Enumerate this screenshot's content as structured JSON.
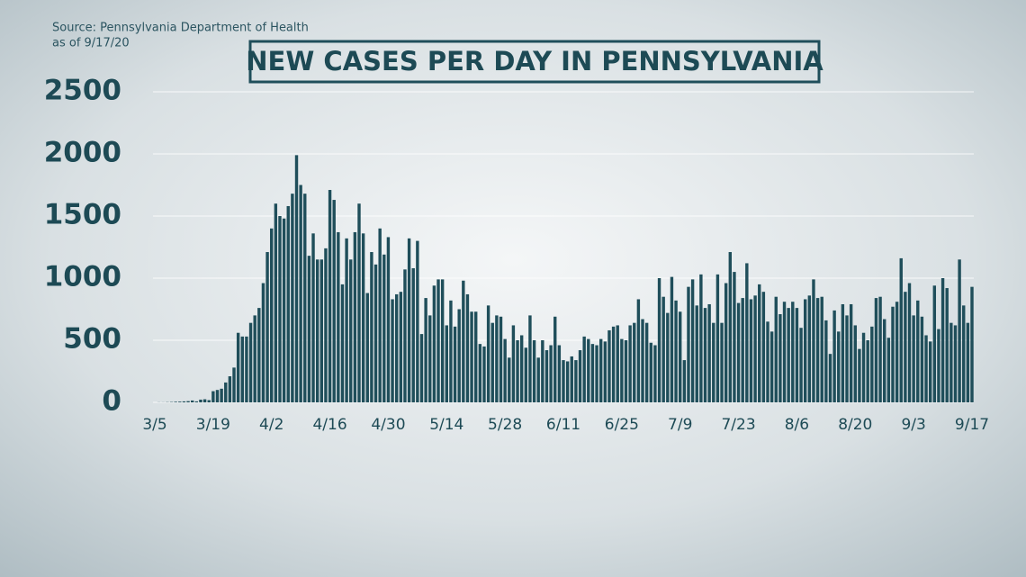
{
  "chart_data": {
    "type": "bar",
    "title": "NEW CASES PER DAY IN PENNSYLVANIA",
    "source": "Source: Pennsylvania Department of Health",
    "note": "as of 9/17/20",
    "color": "#1f4e5a",
    "grid": true,
    "ylim": [
      0,
      2500
    ],
    "yticks": [
      0,
      500,
      1000,
      1500,
      2000,
      2500
    ],
    "categories": [
      "3/5",
      null,
      null,
      null,
      null,
      null,
      null,
      null,
      null,
      null,
      null,
      null,
      null,
      null,
      "3/19",
      null,
      null,
      null,
      null,
      null,
      null,
      null,
      null,
      null,
      null,
      null,
      null,
      null,
      "4/2",
      null,
      null,
      null,
      null,
      null,
      null,
      null,
      null,
      null,
      null,
      null,
      null,
      null,
      "4/16",
      null,
      null,
      null,
      null,
      null,
      null,
      null,
      null,
      null,
      null,
      null,
      null,
      null,
      "4/30",
      null,
      null,
      null,
      null,
      null,
      null,
      null,
      null,
      null,
      null,
      null,
      null,
      null,
      "5/14",
      null,
      null,
      null,
      null,
      null,
      null,
      null,
      null,
      null,
      null,
      null,
      null,
      null,
      "5/28",
      null,
      null,
      null,
      null,
      null,
      null,
      null,
      null,
      null,
      null,
      null,
      null,
      null,
      "6/11",
      null,
      null,
      null,
      null,
      null,
      null,
      null,
      null,
      null,
      null,
      null,
      null,
      null,
      "6/25",
      null,
      null,
      null,
      null,
      null,
      null,
      null,
      null,
      null,
      null,
      null,
      null,
      null,
      "7/9",
      null,
      null,
      null,
      null,
      null,
      null,
      null,
      null,
      null,
      null,
      null,
      null,
      null,
      "7/23",
      null,
      null,
      null,
      null,
      null,
      null,
      null,
      null,
      null,
      null,
      null,
      null,
      null,
      "8/6",
      null,
      null,
      null,
      null,
      null,
      null,
      null,
      null,
      null,
      null,
      null,
      null,
      null,
      "8/20",
      null,
      null,
      null,
      null,
      null,
      null,
      null,
      null,
      null,
      null,
      null,
      null,
      null,
      "9/3",
      null,
      null,
      null,
      null,
      null,
      null,
      null,
      null,
      null,
      null,
      null,
      null,
      null,
      "9/17"
    ],
    "values": [
      0,
      1,
      1,
      2,
      3,
      5,
      6,
      8,
      10,
      15,
      8,
      22,
      25,
      18,
      90,
      100,
      110,
      160,
      210,
      280,
      560,
      530,
      530,
      640,
      700,
      760,
      960,
      1210,
      1400,
      1600,
      1500,
      1480,
      1580,
      1680,
      1990,
      1750,
      1680,
      1180,
      1360,
      1150,
      1150,
      1240,
      1710,
      1630,
      1370,
      950,
      1320,
      1150,
      1370,
      1600,
      1360,
      880,
      1210,
      1110,
      1400,
      1190,
      1330,
      830,
      870,
      890,
      1070,
      1320,
      1080,
      1300,
      550,
      840,
      700,
      940,
      990,
      990,
      620,
      820,
      610,
      750,
      980,
      870,
      730,
      730,
      470,
      450,
      780,
      640,
      700,
      690,
      510,
      360,
      620,
      500,
      540,
      440,
      700,
      500,
      360,
      500,
      420,
      460,
      690,
      460,
      340,
      330,
      370,
      340,
      420,
      530,
      510,
      470,
      460,
      510,
      490,
      580,
      610,
      620,
      510,
      500,
      620,
      640,
      830,
      670,
      640,
      480,
      460,
      1000,
      850,
      720,
      1010,
      820,
      730,
      340,
      930,
      990,
      780,
      1030,
      760,
      790,
      640,
      1030,
      640,
      960,
      1210,
      1050,
      800,
      840,
      1120,
      830,
      860,
      950,
      890,
      650,
      570,
      850,
      710,
      810,
      760,
      810,
      760,
      600,
      830,
      860,
      990,
      840,
      850,
      660,
      390,
      740,
      570,
      790,
      700,
      790,
      620,
      430,
      560,
      500,
      610,
      840,
      850,
      670,
      520,
      770,
      810,
      1160,
      890,
      960,
      700,
      820,
      690,
      540,
      490,
      940,
      590,
      1000,
      920,
      640,
      620,
      1150,
      780,
      640,
      930
    ]
  }
}
